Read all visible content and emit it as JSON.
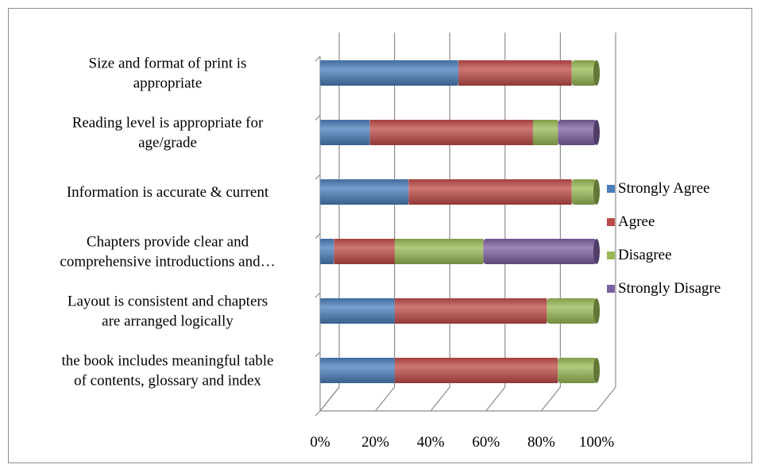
{
  "chart_data": {
    "type": "bar",
    "orientation": "horizontal",
    "stacked": "percent",
    "style": "3d-cylinder",
    "categories": [
      "Size and format of print is appropriate",
      "Reading level is appropriate for age/grade",
      "Information is accurate & current",
      "Chapters provide clear and comprehensive introductions and…",
      "Layout is consistent and chapters are arranged logically",
      "the book includes meaningful table of contents, glossary and index"
    ],
    "series": [
      {
        "name": "Strongly Agree",
        "color": "#4a7ebb",
        "values": [
          50,
          18,
          32,
          5,
          27,
          27
        ]
      },
      {
        "name": "Agree",
        "color": "#be4b48",
        "values": [
          41,
          59,
          59,
          22,
          55,
          59
        ]
      },
      {
        "name": "Disagree",
        "color": "#98b954",
        "values": [
          9,
          9,
          9,
          32,
          18,
          14
        ]
      },
      {
        "name": "Strongly Disagre",
        "color": "#7d5fa0",
        "values": [
          0,
          14,
          0,
          41,
          0,
          0
        ]
      }
    ],
    "xticks": [
      "0%",
      "20%",
      "40%",
      "60%",
      "80%",
      "100%"
    ],
    "xlim": [
      0,
      100
    ],
    "grid": true,
    "legend_position": "right",
    "title": "",
    "xlabel": "",
    "ylabel": ""
  }
}
